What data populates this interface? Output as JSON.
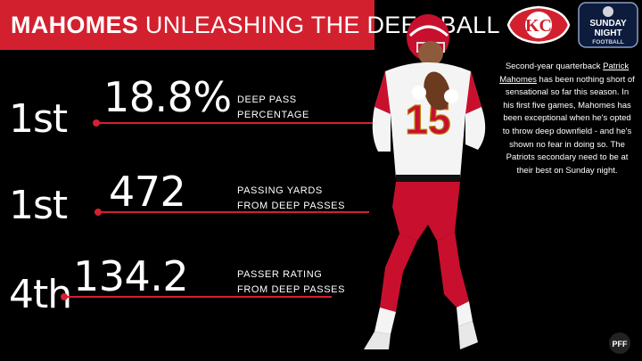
{
  "header": {
    "title_bold": "MAHOMES",
    "title_light": "UNLEASHING THE DEEP BALL"
  },
  "colors": {
    "accent": "#d3202f",
    "background": "#000000",
    "text": "#ffffff"
  },
  "logos": {
    "team": "KC",
    "network_line1": "SUNDAY",
    "network_line2": "NIGHT",
    "network_line3": "FOOTBALL",
    "watermark": "PFF"
  },
  "stats": [
    {
      "rank": "1st",
      "value": "18.8%",
      "label_line1": "DEEP PASS",
      "label_line2": "PERCENTAGE"
    },
    {
      "rank": "1st",
      "value": "472",
      "label_line1": "PASSING YARDS",
      "label_line2": "FROM DEEP PASSES"
    },
    {
      "rank": "4th",
      "value": "134.2",
      "label_line1": "PASSER RATING",
      "label_line2": "FROM DEEP PASSES"
    }
  ],
  "player": {
    "jersey_number": "15"
  },
  "blurb": {
    "part1": "Second-year quarterback ",
    "link": "Patrick Mahomes",
    "part2": " has been nothing short of sensational so far this season. In his first five games, Mahomes has been exceptional when he's opted to throw deep downfield - and he's shown no fear in doing so. The Patriots secondary need to be at their best on Sunday night."
  }
}
